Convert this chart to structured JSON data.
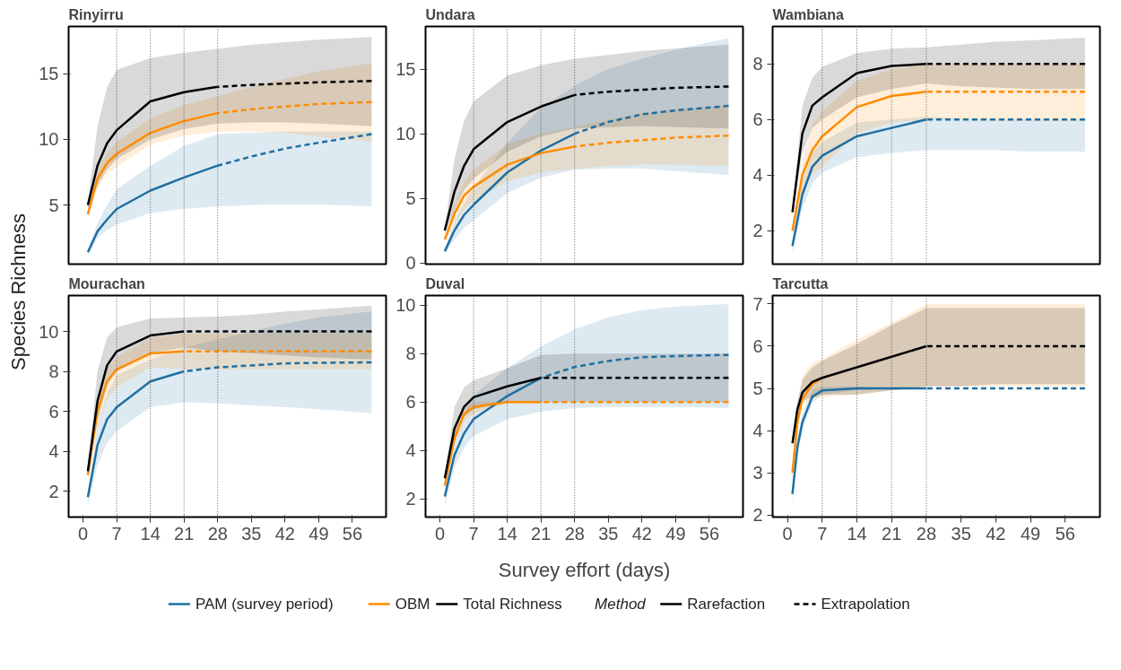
{
  "chart_data": [
    {
      "type": "line",
      "title": "Rinyirru",
      "ylabel": "Species Richness",
      "legend": "bottom",
      "legend_title": "Method",
      "annotations": [
        "Rarefaction",
        "Extrapolation"
      ],
      "tick_labels": "y",
      "xlim": [
        -3,
        63
      ],
      "ylim": [
        0.5,
        18.6
      ],
      "xticks": [
        0,
        7,
        14,
        21,
        28,
        35,
        42,
        49,
        56
      ],
      "yticks": [
        5,
        10,
        15
      ],
      "ref_lines": [
        {
          "axis": "x",
          "value": 7,
          "color": "#555555",
          "line_style": "dotted"
        },
        {
          "axis": "x",
          "value": 14,
          "color": "#555555",
          "line_style": "dotted"
        },
        {
          "axis": "x",
          "value": 21,
          "color": "#555555",
          "line_style": "dotted"
        },
        {
          "axis": "x",
          "value": 28,
          "color": "#555555",
          "line_style": "dotted"
        }
      ],
      "series": [
        {
          "name": "PAM (survey period)",
          "color": "#1f6fa3",
          "line_style": "solid",
          "x": [
            1,
            3,
            5,
            7,
            14,
            21,
            28
          ],
          "values": [
            1.4,
            3.0,
            3.9,
            4.7,
            6.1,
            7.1,
            8.0
          ],
          "lower": [
            1.2,
            2.5,
            3.1,
            3.5,
            4.4,
            4.7,
            4.9
          ],
          "upper": [
            1.6,
            3.6,
            5.0,
            6.2,
            8.0,
            9.5,
            10.4
          ]
        },
        {
          "color": "#1f6fa3",
          "line_style": "dashed",
          "x": [
            28,
            35,
            42,
            49,
            60
          ],
          "values": [
            8.0,
            8.7,
            9.3,
            9.75,
            10.4
          ],
          "lower": [
            4.9,
            5.0,
            5.05,
            5.05,
            4.9
          ],
          "upper": [
            10.4,
            10.5,
            10.6,
            10.6,
            10.6
          ]
        },
        {
          "name": "OBM",
          "color": "#ff8c00",
          "line_style": "solid",
          "x": [
            1,
            3,
            5,
            7,
            14,
            21,
            28
          ],
          "values": [
            4.3,
            7.0,
            8.2,
            8.9,
            10.5,
            11.4,
            12.0
          ],
          "lower": [
            4.0,
            6.3,
            7.4,
            7.9,
            9.6,
            10.3,
            10.6
          ],
          "upper": [
            4.6,
            7.7,
            9.0,
            9.8,
            11.6,
            12.6,
            13.3
          ]
        },
        {
          "color": "#ff8c00",
          "line_style": "dashed",
          "x": [
            28,
            35,
            42,
            49,
            60
          ],
          "values": [
            12.0,
            12.3,
            12.5,
            12.7,
            12.85
          ],
          "lower": [
            10.6,
            10.6,
            10.5,
            10.2,
            9.8
          ],
          "upper": [
            13.3,
            14.0,
            14.6,
            15.2,
            15.8
          ]
        },
        {
          "name": "Total Richness",
          "color": "#000000",
          "line_style": "solid",
          "x": [
            1,
            3,
            5,
            7,
            14,
            21,
            28
          ],
          "values": [
            5.0,
            8.0,
            9.7,
            10.7,
            12.9,
            13.6,
            14.0
          ],
          "lower": [
            4.7,
            6.5,
            7.7,
            8.5,
            10.0,
            10.8,
            11.2
          ],
          "upper": [
            5.3,
            11.0,
            14.0,
            15.3,
            16.2,
            16.6,
            16.9
          ]
        },
        {
          "color": "#000000",
          "line_style": "dashed",
          "x": [
            28,
            35,
            42,
            49,
            60
          ],
          "values": [
            14.0,
            14.15,
            14.25,
            14.35,
            14.45
          ],
          "lower": [
            11.2,
            11.3,
            11.3,
            11.2,
            11.0
          ],
          "upper": [
            16.9,
            17.2,
            17.4,
            17.6,
            17.8
          ]
        }
      ]
    },
    {
      "type": "line",
      "title": "Undara",
      "tick_labels": "y",
      "xlim": [
        -3,
        63
      ],
      "ylim": [
        -0.1,
        18.3
      ],
      "xticks": [
        0,
        7,
        14,
        21,
        28,
        35,
        42,
        49,
        56
      ],
      "yticks": [
        0,
        5,
        10,
        15
      ],
      "ref_lines": [
        {
          "axis": "x",
          "value": 7,
          "color": "#555555",
          "line_style": "dotted"
        },
        {
          "axis": "x",
          "value": 14,
          "color": "#555555",
          "line_style": "dotted"
        },
        {
          "axis": "x",
          "value": 21,
          "color": "#555555",
          "line_style": "dotted"
        },
        {
          "axis": "x",
          "value": 28,
          "color": "#555555",
          "line_style": "dotted"
        }
      ],
      "series": [
        {
          "color": "#1f6fa3",
          "line_style": "solid",
          "x": [
            1,
            3,
            5,
            7,
            14,
            21,
            28
          ],
          "values": [
            0.9,
            2.5,
            3.7,
            4.5,
            7.0,
            8.7,
            10.0
          ],
          "lower": [
            0.7,
            1.8,
            2.7,
            3.3,
            5.4,
            6.6,
            7.2
          ],
          "upper": [
            1.1,
            3.2,
            4.6,
            5.8,
            9.3,
            12.0,
            13.7
          ]
        },
        {
          "color": "#1f6fa3",
          "line_style": "dashed",
          "x": [
            28,
            35,
            42,
            49,
            60
          ],
          "values": [
            10.0,
            10.9,
            11.5,
            11.8,
            12.15
          ],
          "lower": [
            7.2,
            7.3,
            7.3,
            7.1,
            6.8
          ],
          "upper": [
            13.7,
            15.0,
            15.8,
            16.5,
            17.4
          ]
        },
        {
          "color": "#ff8c00",
          "line_style": "solid",
          "x": [
            1,
            3,
            5,
            7,
            14,
            21,
            28
          ],
          "values": [
            1.8,
            3.8,
            5.2,
            5.9,
            7.6,
            8.5,
            9.0
          ],
          "lower": [
            1.6,
            3.0,
            4.1,
            4.8,
            6.3,
            7.0,
            7.3
          ],
          "upper": [
            2.0,
            4.6,
            6.3,
            7.2,
            9.2,
            10.0,
            10.5
          ]
        },
        {
          "color": "#ff8c00",
          "line_style": "dashed",
          "x": [
            28,
            35,
            42,
            49,
            60
          ],
          "values": [
            9.0,
            9.3,
            9.5,
            9.7,
            9.85
          ],
          "lower": [
            7.3,
            7.5,
            7.6,
            7.6,
            7.5
          ],
          "upper": [
            10.5,
            11.1,
            11.6,
            11.9,
            12.2
          ]
        },
        {
          "color": "#000000",
          "line_style": "solid",
          "x": [
            1,
            3,
            5,
            7,
            14,
            21,
            28
          ],
          "values": [
            2.5,
            5.5,
            7.5,
            8.8,
            10.9,
            12.1,
            13.0
          ],
          "lower": [
            2.3,
            4.0,
            5.6,
            6.5,
            8.6,
            9.8,
            10.4
          ],
          "upper": [
            2.7,
            8.0,
            11.0,
            12.5,
            14.5,
            15.3,
            15.8
          ]
        },
        {
          "color": "#000000",
          "line_style": "dashed",
          "x": [
            28,
            35,
            42,
            49,
            60
          ],
          "values": [
            13.0,
            13.25,
            13.4,
            13.55,
            13.65
          ],
          "lower": [
            10.4,
            10.5,
            10.6,
            10.5,
            10.4
          ],
          "upper": [
            15.8,
            16.1,
            16.4,
            16.6,
            16.9
          ]
        }
      ]
    },
    {
      "type": "line",
      "title": "Wambiana",
      "tick_labels": "y",
      "xlim": [
        -3,
        63
      ],
      "ylim": [
        0.8,
        9.35
      ],
      "xticks": [
        0,
        7,
        14,
        21,
        28,
        35,
        42,
        49,
        56
      ],
      "yticks": [
        2,
        4,
        6,
        8
      ],
      "ref_lines": [
        {
          "axis": "x",
          "value": 7,
          "color": "#555555",
          "line_style": "dotted"
        },
        {
          "axis": "x",
          "value": 14,
          "color": "#555555",
          "line_style": "dotted"
        },
        {
          "axis": "x",
          "value": 21,
          "color": "#555555",
          "line_style": "dotted"
        },
        {
          "axis": "x",
          "value": 28,
          "color": "#555555",
          "line_style": "dotted"
        }
      ],
      "series": [
        {
          "color": "#1f6fa3",
          "line_style": "solid",
          "x": [
            1,
            3,
            5,
            7,
            14,
            21,
            28
          ],
          "values": [
            1.45,
            3.3,
            4.3,
            4.7,
            5.4,
            5.7,
            6.0
          ],
          "lower": [
            1.2,
            2.8,
            3.7,
            4.1,
            4.65,
            4.8,
            4.9
          ],
          "upper": [
            1.6,
            3.8,
            4.8,
            5.2,
            5.9,
            6.0,
            6.1
          ]
        },
        {
          "color": "#1f6fa3",
          "line_style": "dashed",
          "x": [
            28,
            35,
            42,
            49,
            60
          ],
          "values": [
            6.0,
            6.0,
            6.0,
            6.0,
            6.0
          ],
          "lower": [
            4.9,
            4.9,
            4.9,
            4.85,
            4.85
          ],
          "upper": [
            6.1,
            6.05,
            6.0,
            6.0,
            6.0
          ]
        },
        {
          "color": "#ff8c00",
          "line_style": "solid",
          "x": [
            1,
            3,
            5,
            7,
            14,
            21,
            28
          ],
          "values": [
            2.0,
            4.0,
            4.9,
            5.4,
            6.45,
            6.85,
            7.0
          ],
          "lower": [
            1.8,
            3.4,
            4.0,
            4.3,
            5.5,
            5.9,
            6.0
          ],
          "upper": [
            2.1,
            4.6,
            5.8,
            6.3,
            7.4,
            7.8,
            8.0
          ]
        },
        {
          "color": "#ff8c00",
          "line_style": "dashed",
          "x": [
            28,
            35,
            42,
            49,
            60
          ],
          "values": [
            7.0,
            7.0,
            7.0,
            7.0,
            7.0
          ],
          "lower": [
            6.0,
            6.0,
            5.95,
            5.95,
            5.95
          ],
          "upper": [
            8.0,
            8.0,
            8.0,
            8.0,
            8.0
          ]
        },
        {
          "color": "#000000",
          "line_style": "solid",
          "x": [
            1,
            3,
            5,
            7,
            14,
            21,
            28
          ],
          "values": [
            2.67,
            5.5,
            6.5,
            6.8,
            7.67,
            7.93,
            8.0
          ],
          "lower": [
            2.5,
            4.8,
            5.7,
            6.0,
            6.8,
            7.1,
            7.3
          ],
          "upper": [
            2.8,
            6.5,
            7.5,
            7.9,
            8.4,
            8.55,
            8.6
          ]
        },
        {
          "color": "#000000",
          "line_style": "dashed",
          "x": [
            28,
            35,
            42,
            49,
            60
          ],
          "values": [
            8.0,
            8.0,
            8.0,
            8.0,
            8.0
          ],
          "lower": [
            7.3,
            7.2,
            7.15,
            7.1,
            7.1
          ],
          "upper": [
            8.6,
            8.7,
            8.8,
            8.85,
            8.95
          ]
        }
      ]
    },
    {
      "type": "line",
      "title": "Mourachan",
      "xlim": [
        -3,
        63
      ],
      "ylim": [
        0.7,
        11.8
      ],
      "xticks": [
        0,
        7,
        14,
        21,
        28,
        35,
        42,
        49,
        56
      ],
      "yticks": [
        2,
        4,
        6,
        8,
        10
      ],
      "ref_lines": [
        {
          "axis": "x",
          "value": 7,
          "color": "#555555",
          "line_style": "dotted"
        },
        {
          "axis": "x",
          "value": 14,
          "color": "#555555",
          "line_style": "dotted"
        },
        {
          "axis": "x",
          "value": 21,
          "color": "#555555",
          "line_style": "dotted"
        },
        {
          "axis": "x",
          "value": 28,
          "color": "#555555",
          "line_style": "dotted"
        }
      ],
      "series": [
        {
          "color": "#1f6fa3",
          "line_style": "solid",
          "x": [
            1,
            3,
            5,
            7,
            14,
            21
          ],
          "values": [
            1.7,
            4.3,
            5.6,
            6.2,
            7.5,
            8.0
          ],
          "lower": [
            1.3,
            3.3,
            4.4,
            5.0,
            6.2,
            6.45
          ],
          "upper": [
            1.9,
            5.3,
            6.9,
            7.8,
            8.6,
            9.2
          ]
        },
        {
          "color": "#1f6fa3",
          "line_style": "dashed",
          "x": [
            21,
            28,
            35,
            42,
            49,
            60
          ],
          "values": [
            8.0,
            8.2,
            8.3,
            8.4,
            8.43,
            8.45
          ],
          "lower": [
            6.45,
            6.4,
            6.3,
            6.2,
            6.1,
            5.9
          ],
          "upper": [
            9.2,
            9.6,
            10.0,
            10.4,
            10.7,
            11.0
          ]
        },
        {
          "color": "#ff8c00",
          "line_style": "solid",
          "x": [
            1,
            3,
            5,
            7,
            14,
            21
          ],
          "values": [
            2.8,
            6.0,
            7.5,
            8.1,
            8.9,
            9.0
          ],
          "lower": [
            2.6,
            5.2,
            6.6,
            7.2,
            8.2,
            8.1
          ],
          "upper": [
            3.0,
            6.8,
            8.2,
            8.7,
            9.7,
            9.9
          ]
        },
        {
          "color": "#ff8c00",
          "line_style": "dashed",
          "x": [
            21,
            28,
            35,
            42,
            49,
            60
          ],
          "values": [
            9.0,
            9.0,
            9.0,
            9.0,
            9.0,
            9.0
          ],
          "lower": [
            8.1,
            8.1,
            8.1,
            8.1,
            8.1,
            8.1
          ],
          "upper": [
            9.9,
            9.9,
            9.9,
            9.9,
            9.9,
            9.9
          ]
        },
        {
          "color": "#000000",
          "line_style": "solid",
          "x": [
            1,
            3,
            5,
            7,
            14,
            21
          ],
          "values": [
            3.0,
            6.5,
            8.3,
            9.0,
            9.8,
            10.0
          ],
          "lower": [
            2.8,
            5.5,
            7.3,
            8.0,
            8.9,
            9.2
          ],
          "upper": [
            3.2,
            8.0,
            9.7,
            10.2,
            10.65,
            10.7
          ]
        },
        {
          "color": "#000000",
          "line_style": "dashed",
          "x": [
            21,
            28,
            35,
            42,
            49,
            60
          ],
          "values": [
            10.0,
            10.0,
            10.0,
            10.0,
            10.0,
            10.0
          ],
          "lower": [
            9.2,
            9.0,
            8.9,
            8.8,
            8.7,
            8.6
          ],
          "upper": [
            10.7,
            10.75,
            10.85,
            11.0,
            11.1,
            11.3
          ]
        }
      ]
    },
    {
      "type": "line",
      "title": "Duval",
      "xlabel": "Survey effort (days)",
      "xlim": [
        -3,
        63
      ],
      "ylim": [
        1.25,
        10.4
      ],
      "xticks": [
        0,
        7,
        14,
        21,
        28,
        35,
        42,
        49,
        56
      ],
      "yticks": [
        2,
        4,
        6,
        8,
        10
      ],
      "ref_lines": [
        {
          "axis": "x",
          "value": 7,
          "color": "#555555",
          "line_style": "dotted"
        },
        {
          "axis": "x",
          "value": 14,
          "color": "#555555",
          "line_style": "dotted"
        },
        {
          "axis": "x",
          "value": 21,
          "color": "#555555",
          "line_style": "dotted"
        },
        {
          "axis": "x",
          "value": 28,
          "color": "#555555",
          "line_style": "dotted"
        }
      ],
      "series": [
        {
          "color": "#1f6fa3",
          "line_style": "solid",
          "x": [
            1,
            3,
            5,
            7,
            14,
            21
          ],
          "values": [
            2.1,
            3.8,
            4.7,
            5.3,
            6.25,
            7.0
          ],
          "lower": [
            1.7,
            3.3,
            4.1,
            4.6,
            5.3,
            5.6
          ],
          "upper": [
            2.3,
            4.4,
            5.5,
            6.3,
            7.4,
            8.3
          ]
        },
        {
          "color": "#1f6fa3",
          "line_style": "dashed",
          "x": [
            21,
            28,
            35,
            42,
            49,
            60
          ],
          "values": [
            7.0,
            7.45,
            7.7,
            7.85,
            7.9,
            7.95
          ],
          "lower": [
            5.6,
            5.75,
            5.8,
            5.8,
            5.8,
            5.75
          ],
          "upper": [
            8.3,
            9.0,
            9.5,
            9.8,
            9.95,
            10.05
          ]
        },
        {
          "color": "#ff8c00",
          "line_style": "solid",
          "x": [
            1,
            3,
            5,
            7,
            14,
            21
          ],
          "values": [
            2.55,
            4.5,
            5.5,
            5.8,
            6.0,
            6.0
          ],
          "lower": [
            2.4,
            4.2,
            5.2,
            5.5,
            5.95,
            5.95
          ],
          "upper": [
            2.7,
            4.8,
            5.8,
            6.0,
            6.05,
            6.05
          ]
        },
        {
          "color": "#ff8c00",
          "line_style": "dashed",
          "x": [
            21,
            28,
            35,
            42,
            49,
            60
          ],
          "values": [
            6.0,
            6.0,
            6.0,
            6.0,
            6.0,
            6.0
          ]
        },
        {
          "color": "#000000",
          "line_style": "solid",
          "x": [
            1,
            3,
            5,
            7,
            14,
            21
          ],
          "values": [
            2.85,
            4.9,
            5.8,
            6.2,
            6.65,
            7.0
          ],
          "lower": [
            2.7,
            4.4,
            5.4,
            5.7,
            6.0,
            6.0
          ],
          "upper": [
            3.0,
            5.8,
            6.6,
            6.9,
            7.4,
            7.95
          ]
        },
        {
          "color": "#000000",
          "line_style": "dashed",
          "x": [
            21,
            28,
            35,
            42,
            49,
            60
          ],
          "values": [
            7.0,
            7.0,
            7.0,
            7.0,
            7.0,
            7.0
          ],
          "lower": [
            6.0,
            6.0,
            6.0,
            6.0,
            6.0,
            6.0
          ],
          "upper": [
            7.95,
            8.0,
            8.0,
            8.0,
            8.0,
            8.0
          ]
        }
      ]
    },
    {
      "type": "line",
      "title": "Tarcutta",
      "xlim": [
        -3,
        63
      ],
      "ylim": [
        1.95,
        7.2
      ],
      "xticks": [
        0,
        7,
        14,
        21,
        28,
        35,
        42,
        49,
        56
      ],
      "yticks": [
        2,
        3,
        4,
        5,
        6,
        7
      ],
      "ref_lines": [
        {
          "axis": "x",
          "value": 7,
          "color": "#555555",
          "line_style": "dotted"
        },
        {
          "axis": "x",
          "value": 14,
          "color": "#555555",
          "line_style": "dotted"
        },
        {
          "axis": "x",
          "value": 21,
          "color": "#555555",
          "line_style": "dotted"
        },
        {
          "axis": "x",
          "value": 28,
          "color": "#555555",
          "line_style": "dotted"
        }
      ],
      "series": [
        {
          "color": "#1f6fa3",
          "line_style": "solid",
          "x": [
            1,
            2,
            3,
            5,
            7,
            14,
            21,
            28
          ],
          "values": [
            2.5,
            3.6,
            4.2,
            4.8,
            4.95,
            5.0,
            5.0,
            5.0
          ],
          "lower": [
            2.3,
            3.4,
            4.0,
            4.65,
            4.85,
            4.95,
            5.0,
            5.0
          ],
          "upper": [
            2.6,
            3.8,
            4.4,
            4.95,
            5.05,
            5.05,
            5.0,
            5.0
          ]
        },
        {
          "color": "#1f6fa3",
          "line_style": "dashed",
          "x": [
            28,
            35,
            42,
            49,
            60
          ],
          "values": [
            5.0,
            5.0,
            5.0,
            5.0,
            5.0
          ]
        },
        {
          "color": "#ff8c00",
          "line_style": "solid",
          "x": [
            1,
            2,
            3,
            5,
            7,
            14,
            21,
            28
          ],
          "values": [
            3.0,
            4.2,
            4.75,
            5.1,
            5.25,
            null,
            null,
            null
          ],
          "lower": [
            2.9,
            4.0,
            4.6,
            4.75,
            4.8,
            4.85,
            4.95,
            5.05
          ],
          "upper": [
            3.1,
            4.4,
            5.3,
            5.6,
            5.7,
            6.15,
            6.55,
            7.0
          ]
        },
        {
          "color": "#ff8c00",
          "line_style": "dashed",
          "x": [
            28,
            35,
            42,
            49,
            60
          ],
          "values": [
            null,
            null,
            null,
            null,
            null
          ],
          "lower": [
            5.05,
            5.05,
            5.05,
            5.05,
            5.05
          ],
          "upper": [
            7.0,
            7.0,
            7.0,
            7.0,
            7.0
          ]
        },
        {
          "color": "#000000",
          "line_style": "solid",
          "x": [
            1,
            2,
            3,
            5,
            7,
            14,
            21,
            28
          ],
          "values": [
            3.7,
            4.5,
            4.9,
            5.15,
            5.25,
            5.5,
            5.75,
            6.0
          ],
          "lower": [
            3.6,
            4.3,
            4.7,
            4.8,
            4.85,
            4.85,
            4.95,
            5.05
          ],
          "upper": [
            3.8,
            4.7,
            5.2,
            5.5,
            5.65,
            6.05,
            6.5,
            6.9
          ]
        },
        {
          "color": "#000000",
          "line_style": "dashed",
          "x": [
            28,
            35,
            42,
            49,
            60
          ],
          "values": [
            6.0,
            6.0,
            6.0,
            6.0,
            6.0
          ],
          "lower": [
            5.05,
            5.05,
            5.1,
            5.1,
            5.1
          ],
          "upper": [
            6.9,
            6.9,
            6.9,
            6.9,
            6.9
          ]
        }
      ]
    }
  ]
}
